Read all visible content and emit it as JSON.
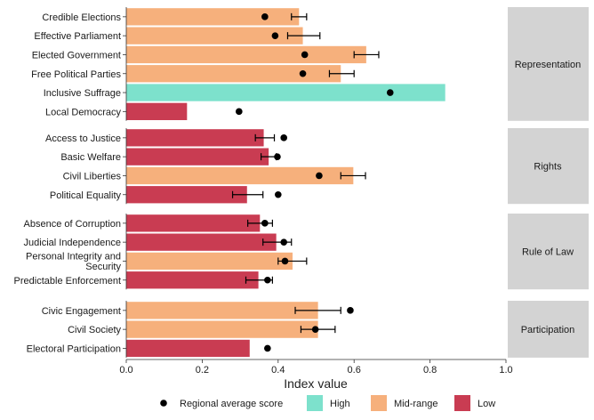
{
  "chart_data": {
    "type": "bar",
    "orientation": "horizontal",
    "xlabel": "Index value",
    "xlim": [
      0,
      1.0
    ],
    "x_ticks": [
      "0.0",
      "0.2",
      "0.4",
      "0.6",
      "0.8",
      "1.0"
    ],
    "grid": false,
    "legend_position": "bottom",
    "legend": {
      "point_label": "Regional average score",
      "categories": [
        {
          "key": "High",
          "label": "High",
          "color": "#7de1cc"
        },
        {
          "key": "Mid-range",
          "label": "Mid-range",
          "color": "#f6b07c"
        },
        {
          "key": "Low",
          "label": "Low",
          "color": "#c93c52"
        }
      ]
    },
    "panels": [
      {
        "name": "Representation",
        "rows": [
          {
            "label": "Credible Elections",
            "value": 0.455,
            "category": "Mid-range",
            "regional_avg": 0.365,
            "err_low": 0.435,
            "err_high": 0.475
          },
          {
            "label": "Effective Parliament",
            "value": 0.465,
            "category": "Mid-range",
            "regional_avg": 0.392,
            "err_low": 0.425,
            "err_high": 0.51
          },
          {
            "label": "Elected Government",
            "value": 0.632,
            "category": "Mid-range",
            "regional_avg": 0.47,
            "err_low": 0.6,
            "err_high": 0.665
          },
          {
            "label": "Free Political Parties",
            "value": 0.565,
            "category": "Mid-range",
            "regional_avg": 0.465,
            "err_low": 0.535,
            "err_high": 0.6
          },
          {
            "label": "Inclusive Suffrage",
            "value": 0.84,
            "category": "High",
            "regional_avg": 0.695
          },
          {
            "label": "Local Democracy",
            "value": 0.16,
            "category": "Low",
            "regional_avg": 0.297
          }
        ]
      },
      {
        "name": "Rights",
        "rows": [
          {
            "label": "Access to Justice",
            "value": 0.362,
            "category": "Low",
            "regional_avg": 0.415,
            "err_low": 0.34,
            "err_high": 0.39
          },
          {
            "label": "Basic Welfare",
            "value": 0.375,
            "category": "Low",
            "regional_avg": 0.398,
            "err_low": 0.355,
            "err_high": 0.395
          },
          {
            "label": "Civil Liberties",
            "value": 0.598,
            "category": "Mid-range",
            "regional_avg": 0.508,
            "err_low": 0.565,
            "err_high": 0.63
          },
          {
            "label": "Political Equality",
            "value": 0.318,
            "category": "Low",
            "regional_avg": 0.4,
            "err_low": 0.28,
            "err_high": 0.36
          }
        ]
      },
      {
        "name": "Rule of Law",
        "rows": [
          {
            "label": "Absence of Corruption",
            "value": 0.352,
            "category": "Low",
            "regional_avg": 0.365,
            "err_low": 0.32,
            "err_high": 0.385
          },
          {
            "label": "Judicial Independence",
            "value": 0.395,
            "category": "Low",
            "regional_avg": 0.415,
            "err_low": 0.36,
            "err_high": 0.435
          },
          {
            "label": "Personal Integrity and Security",
            "label_lines": [
              "Personal Integrity and",
              "Security"
            ],
            "value": 0.438,
            "category": "Mid-range",
            "regional_avg": 0.418,
            "err_low": 0.4,
            "err_high": 0.475
          },
          {
            "label": "Predictable Enforcement",
            "value": 0.348,
            "category": "Low",
            "regional_avg": 0.372,
            "err_low": 0.315,
            "err_high": 0.385
          }
        ]
      },
      {
        "name": "Participation",
        "rows": [
          {
            "label": "Civic Engagement",
            "value": 0.505,
            "category": "Mid-range",
            "regional_avg": 0.59,
            "err_low": 0.445,
            "err_high": 0.565
          },
          {
            "label": "Civil Society",
            "value": 0.505,
            "category": "Mid-range",
            "regional_avg": 0.498,
            "err_low": 0.46,
            "err_high": 0.55
          },
          {
            "label": "Electoral Participation",
            "value": 0.325,
            "category": "Low",
            "regional_avg": 0.372
          }
        ]
      }
    ]
  }
}
